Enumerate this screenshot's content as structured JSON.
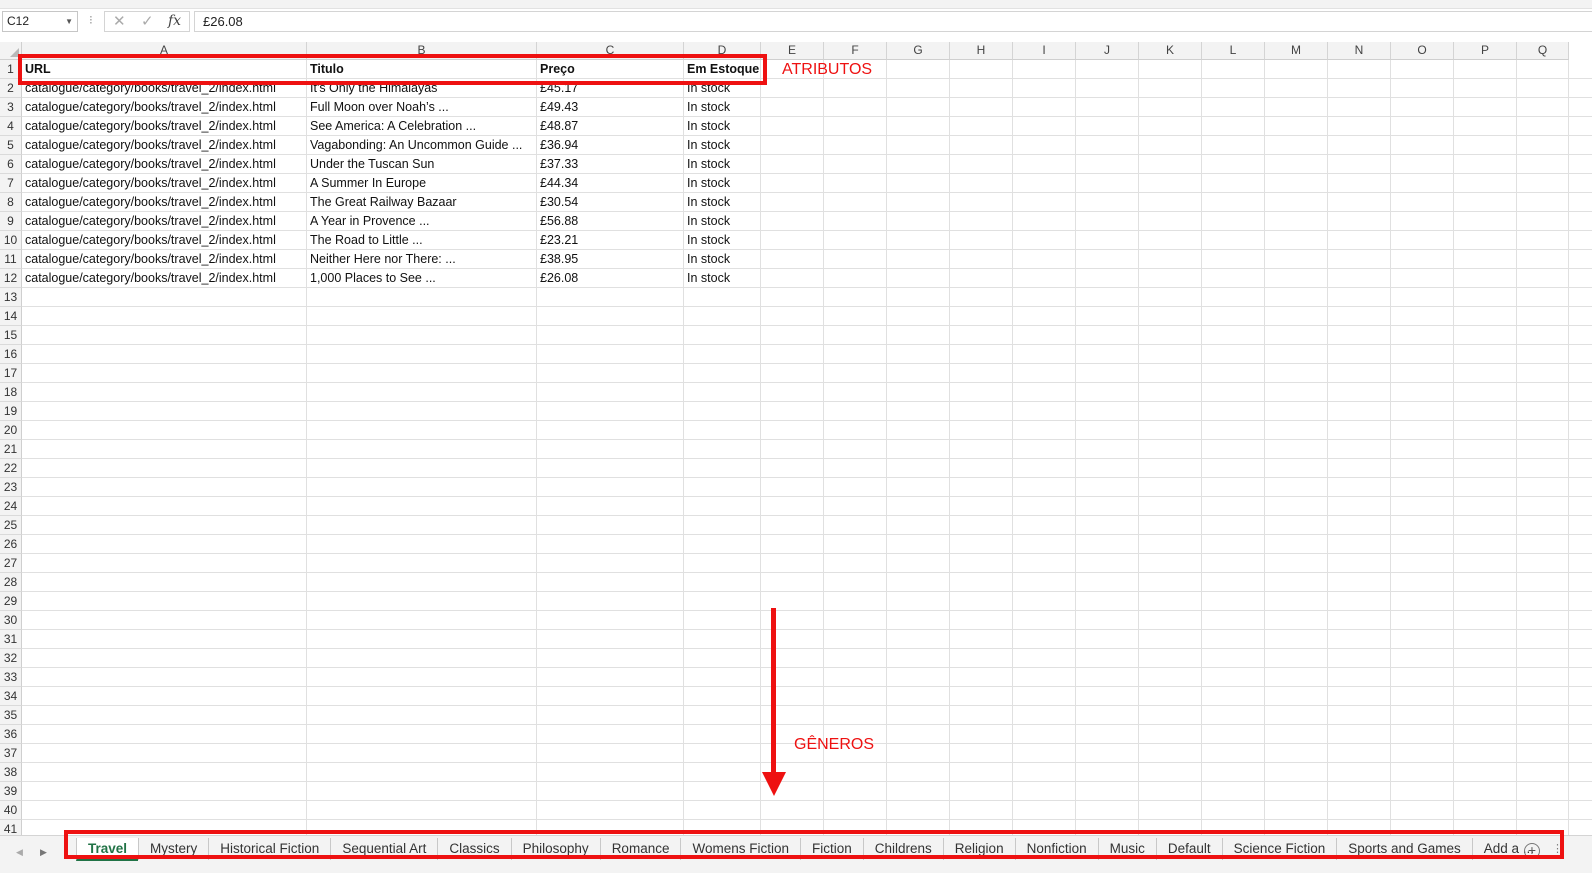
{
  "formula_bar": {
    "name_box": "C12",
    "cancel_icon": "✕",
    "enter_icon": "✓",
    "fx_label": "fx",
    "formula": "£26.08"
  },
  "columns": [
    "A",
    "B",
    "C",
    "D",
    "E",
    "F",
    "G",
    "H",
    "I",
    "J",
    "K",
    "L",
    "M",
    "N",
    "O",
    "P",
    "Q"
  ],
  "rows": [
    "1",
    "2",
    "3",
    "4",
    "5",
    "6",
    "7",
    "8",
    "9",
    "10",
    "11",
    "12",
    "13",
    "14",
    "15",
    "16",
    "17",
    "18",
    "19",
    "20",
    "21",
    "22",
    "23",
    "24",
    "25",
    "26",
    "27",
    "28",
    "29",
    "30",
    "31",
    "32",
    "33",
    "34",
    "35",
    "36",
    "37",
    "38",
    "39",
    "40",
    "41"
  ],
  "table": {
    "headers": [
      "URL",
      "Titulo",
      "Preço",
      "Em Estoque"
    ],
    "rows": [
      [
        "catalogue/category/books/travel_2/index.html",
        "It's Only the Himalayas",
        "£45.17",
        "In stock"
      ],
      [
        "catalogue/category/books/travel_2/index.html",
        "Full Moon over Noah’s ...",
        "£49.43",
        "In stock"
      ],
      [
        "catalogue/category/books/travel_2/index.html",
        "See America: A Celebration ...",
        "£48.87",
        "In stock"
      ],
      [
        "catalogue/category/books/travel_2/index.html",
        "Vagabonding: An Uncommon Guide ...",
        "£36.94",
        "In stock"
      ],
      [
        "catalogue/category/books/travel_2/index.html",
        "Under the Tuscan Sun",
        "£37.33",
        "In stock"
      ],
      [
        "catalogue/category/books/travel_2/index.html",
        "A Summer In Europe",
        "£44.34",
        "In stock"
      ],
      [
        "catalogue/category/books/travel_2/index.html",
        "The Great Railway Bazaar",
        "£30.54",
        "In stock"
      ],
      [
        "catalogue/category/books/travel_2/index.html",
        "A Year in Provence ...",
        "£56.88",
        "In stock"
      ],
      [
        "catalogue/category/books/travel_2/index.html",
        "The Road to Little ...",
        "£23.21",
        "In stock"
      ],
      [
        "catalogue/category/books/travel_2/index.html",
        "Neither Here nor There: ...",
        "£38.95",
        "In stock"
      ],
      [
        "catalogue/category/books/travel_2/index.html",
        "1,000 Places to See ...",
        "£26.08",
        "In stock"
      ]
    ]
  },
  "annotations": {
    "attributes_label": "ATRIBUTOS",
    "genres_label": "GÊNEROS",
    "color": "#ee1111"
  },
  "sheet_tabs": {
    "active": "Travel",
    "tabs": [
      "Travel",
      "Mystery",
      "Historical Fiction",
      "Sequential Art",
      "Classics",
      "Philosophy",
      "Romance",
      "Womens Fiction",
      "Fiction",
      "Childrens",
      "Religion",
      "Nonfiction",
      "Music",
      "Default",
      "Science Fiction",
      "Sports and Games",
      "Add a ..."
    ],
    "prev_icon": "◀",
    "next_icon": "▶",
    "add_icon": "+",
    "more_icon": "⋮",
    "active_color": "#217346"
  }
}
